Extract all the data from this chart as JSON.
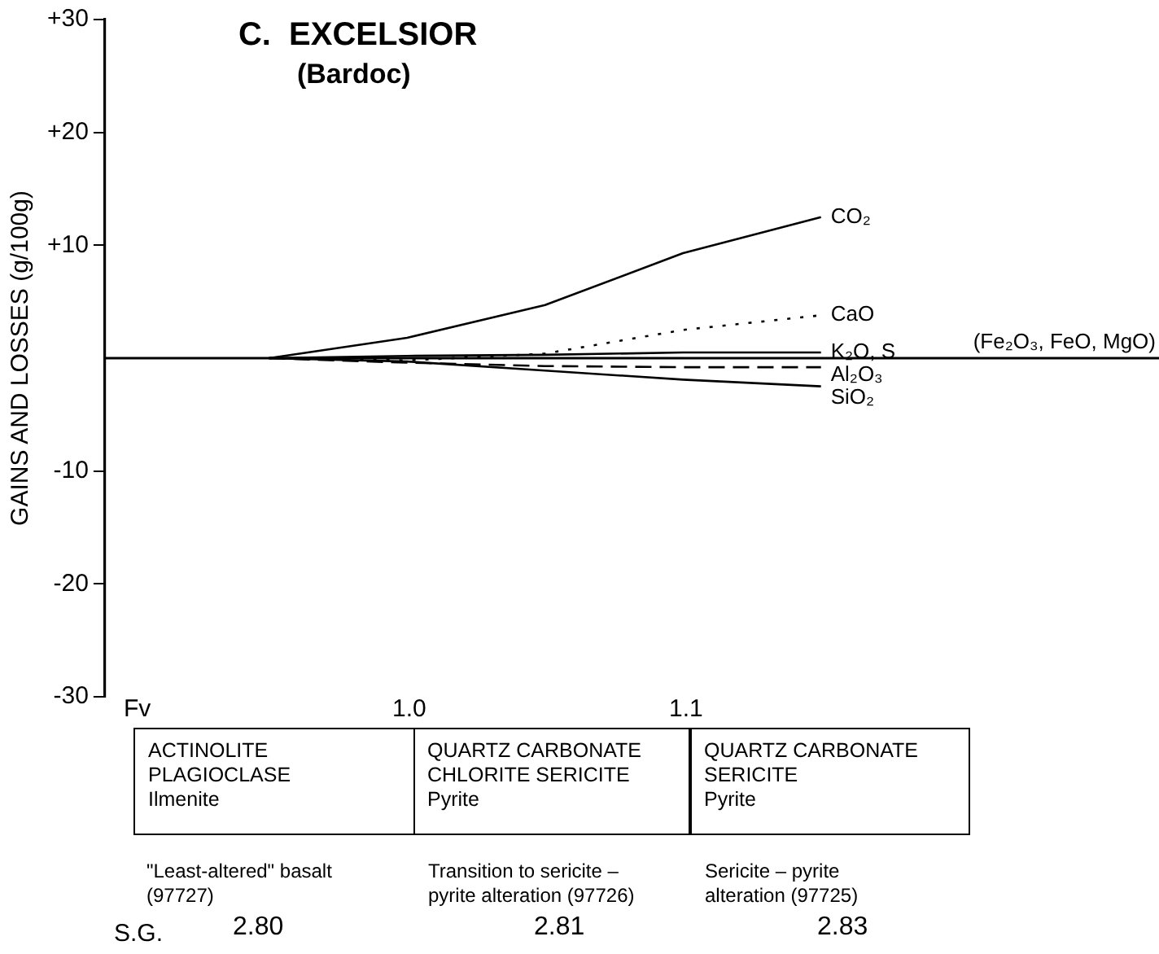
{
  "chart_data": {
    "type": "line",
    "title": "C.  EXCELSIOR",
    "subtitle": "(Bardoc)",
    "ylabel": "GAINS AND LOSSES (g/100g)",
    "categories": [
      null,
      null,
      null,
      null,
      null
    ],
    "ylim": [
      -30,
      30
    ],
    "yticks": [
      {
        "value": 30,
        "label": "+30"
      },
      {
        "value": 20,
        "label": "+20"
      },
      {
        "value": 10,
        "label": "+10"
      },
      -10,
      -20,
      -30
    ],
    "tick_labels": "y",
    "grid": false,
    "legend": false,
    "series": [
      {
        "name": "CO₂",
        "color": "#000000",
        "line_style": "solid",
        "values": [
          0,
          1.8,
          4.7,
          9.3,
          12.5
        ]
      },
      {
        "name": "CaO",
        "color": "#000000",
        "line_style": "dotted",
        "values": [
          0,
          -0.2,
          0.4,
          2.5,
          3.8
        ]
      },
      {
        "name": "K₂O, S",
        "color": "#000000",
        "line_style": "solid",
        "values": [
          0,
          0.2,
          0.3,
          0.5,
          0.5
        ]
      },
      {
        "name": "Al₂O₃",
        "color": "#000000",
        "line_style": "dashed",
        "values": [
          0,
          -0.4,
          -0.7,
          -0.8,
          -0.8
        ]
      },
      {
        "name": "SiO₂",
        "color": "#000000",
        "line_style": "solid",
        "values": [
          0,
          -0.3,
          -1.1,
          -1.9,
          -2.5
        ]
      }
    ],
    "ref_lines": [
      {
        "axis": "y",
        "value": 0,
        "label": "(Fe₂O₃, FeO, MgO)",
        "color": "#000000",
        "line_style": "solid"
      }
    ],
    "annotations": [
      "Fv",
      "1.0",
      "1.1",
      "ACTINOLITE\nPLAGIOCLASE\nIlmenite",
      "QUARTZ CARBONATE\nCHLORITE SERICITE\nPyrite",
      "QUARTZ CARBONATE\nSERICITE\nPyrite",
      "\"Least-altered\" basalt\n(97727)",
      "Transition to sericite –\npyrite alteration  (97726)",
      "Sericite – pyrite\nalteration (97725)",
      "S.G.",
      "2.80",
      "2.81",
      "2.83"
    ]
  }
}
